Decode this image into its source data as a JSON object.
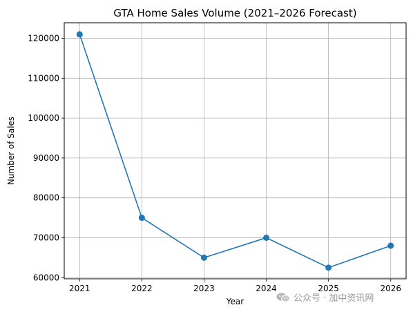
{
  "chart_data": {
    "type": "line",
    "title": "GTA Home Sales Volume (2021–2026 Forecast)",
    "xlabel": "Year",
    "ylabel": "Number of Sales",
    "categories": [
      "2021",
      "2022",
      "2023",
      "2024",
      "2025",
      "2026"
    ],
    "series": [
      {
        "values": [
          121000,
          75000,
          65000,
          70000,
          62500,
          68000
        ],
        "color": "#1f77b4",
        "marker": "circle"
      }
    ],
    "yticks": [
      60000,
      70000,
      80000,
      90000,
      100000,
      110000,
      120000
    ],
    "ytick_labels": [
      "60000",
      "70000",
      "80000",
      "90000",
      "100000",
      "110000",
      "120000"
    ],
    "ylim": [
      59700,
      123900
    ],
    "grid": true,
    "legend": "none"
  },
  "watermark": {
    "text": "公众号 · 加中资讯网",
    "icon": "wechat-icon"
  }
}
